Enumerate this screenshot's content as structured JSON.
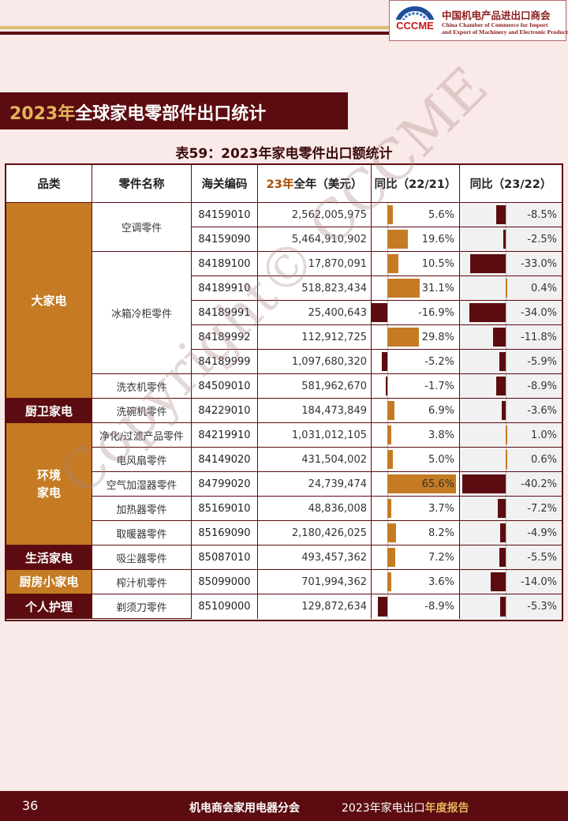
{
  "header": {
    "logo_text": "CCCME",
    "org_cn": "中国机电产品进出口商会",
    "org_en_line1": "China Chamber of Commerce for Import",
    "org_en_line2": "and Export of Machinery and Electronic Products"
  },
  "section_title": {
    "highlight": "2023年",
    "rest": "全球家电零部件出口统计"
  },
  "table_title": "表59：2023年家电零件出口额统计",
  "table": {
    "headers": {
      "category": "品类",
      "part_name": "零件名称",
      "hs_code": "海关编码",
      "value_hl": "23年",
      "value_rest": "全年（美元）",
      "yoy_22_21": "同比（22/21）",
      "yoy_23_22": "同比（23/22）"
    },
    "categories": [
      {
        "name": "大家电",
        "style": "orange",
        "start_row": 0,
        "span": 8
      },
      {
        "name": "厨卫家电",
        "style": "dark",
        "start_row": 8,
        "span": 1
      },
      {
        "name": "环境\n家电",
        "style": "orange",
        "start_row": 9,
        "span": 5
      },
      {
        "name": "生活家电",
        "style": "dark",
        "start_row": 14,
        "span": 1
      },
      {
        "name": "厨房小家电",
        "style": "orange",
        "start_row": 15,
        "span": 1
      },
      {
        "name": "个人护理",
        "style": "dark",
        "start_row": 16,
        "span": 1
      }
    ],
    "parts": [
      {
        "name": "空调零件",
        "start_row": 0,
        "span": 2
      },
      {
        "name": "冰箱冷柜零件",
        "start_row": 2,
        "span": 5
      },
      {
        "name": "洗衣机零件",
        "start_row": 7,
        "span": 1
      },
      {
        "name": "洗碗机零件",
        "start_row": 8,
        "span": 1
      },
      {
        "name": "净化/过滤产品零件",
        "start_row": 9,
        "span": 1
      },
      {
        "name": "电风扇零件",
        "start_row": 10,
        "span": 1
      },
      {
        "name": "空气加湿器零件",
        "start_row": 11,
        "span": 1
      },
      {
        "name": "加热器零件",
        "start_row": 12,
        "span": 1
      },
      {
        "name": "取暖器零件",
        "start_row": 13,
        "span": 1
      },
      {
        "name": "吸尘器零件",
        "start_row": 14,
        "span": 1
      },
      {
        "name": "榨汁机零件",
        "start_row": 15,
        "span": 1
      },
      {
        "name": "剃须刀零件",
        "start_row": 16,
        "span": 1
      }
    ],
    "rows": [
      {
        "code": "84159010",
        "value": "2,562,005,975",
        "yoy1": "5.6%",
        "yoy1_num": 5.6,
        "yoy2": "-8.5%",
        "yoy2_num": -8.5
      },
      {
        "code": "84159090",
        "value": "5,464,910,902",
        "yoy1": "19.6%",
        "yoy1_num": 19.6,
        "yoy2": "-2.5%",
        "yoy2_num": -2.5
      },
      {
        "code": "84189100",
        "value": "17,870,091",
        "yoy1": "10.5%",
        "yoy1_num": 10.5,
        "yoy2": "-33.0%",
        "yoy2_num": -33.0
      },
      {
        "code": "84189910",
        "value": "518,823,434",
        "yoy1": "31.1%",
        "yoy1_num": 31.1,
        "yoy2": "0.4%",
        "yoy2_num": 0.4
      },
      {
        "code": "84189991",
        "value": "25,400,643",
        "yoy1": "-16.9%",
        "yoy1_num": -16.9,
        "yoy2": "-34.0%",
        "yoy2_num": -34.0
      },
      {
        "code": "84189992",
        "value": "112,912,725",
        "yoy1": "29.8%",
        "yoy1_num": 29.8,
        "yoy2": "-11.8%",
        "yoy2_num": -11.8
      },
      {
        "code": "84189999",
        "value": "1,097,680,320",
        "yoy1": "-5.2%",
        "yoy1_num": -5.2,
        "yoy2": "-5.9%",
        "yoy2_num": -5.9
      },
      {
        "code": "84509010",
        "value": "581,962,670",
        "yoy1": "-1.7%",
        "yoy1_num": -1.7,
        "yoy2": "-8.9%",
        "yoy2_num": -8.9
      },
      {
        "code": "84229010",
        "value": "184,473,849",
        "yoy1": "6.9%",
        "yoy1_num": 6.9,
        "yoy2": "-3.6%",
        "yoy2_num": -3.6
      },
      {
        "code": "84219910",
        "value": "1,031,012,105",
        "yoy1": "3.8%",
        "yoy1_num": 3.8,
        "yoy2": "1.0%",
        "yoy2_num": 1.0
      },
      {
        "code": "84149020",
        "value": "431,504,002",
        "yoy1": "5.0%",
        "yoy1_num": 5.0,
        "yoy2": "0.6%",
        "yoy2_num": 0.6
      },
      {
        "code": "84799020",
        "value": "24,739,474",
        "yoy1": "65.6%",
        "yoy1_num": 65.6,
        "yoy2": "-40.2%",
        "yoy2_num": -40.2
      },
      {
        "code": "85169010",
        "value": "48,836,008",
        "yoy1": "3.7%",
        "yoy1_num": 3.7,
        "yoy2": "-7.2%",
        "yoy2_num": -7.2
      },
      {
        "code": "85169090",
        "value": "2,180,426,025",
        "yoy1": "8.2%",
        "yoy1_num": 8.2,
        "yoy2": "-4.9%",
        "yoy2_num": -4.9
      },
      {
        "code": "85087010",
        "value": "493,457,362",
        "yoy1": "7.2%",
        "yoy1_num": 7.2,
        "yoy2": "-5.5%",
        "yoy2_num": -5.5
      },
      {
        "code": "85099000",
        "value": "701,994,362",
        "yoy1": "3.6%",
        "yoy1_num": 3.6,
        "yoy2": "-14.0%",
        "yoy2_num": -14.0
      },
      {
        "code": "85109000",
        "value": "129,872,634",
        "yoy1": "-8.9%",
        "yoy1_num": -8.9,
        "yoy2": "-5.3%",
        "yoy2_num": -5.3
      }
    ]
  },
  "watermark": "Copyright© CCCME",
  "footer": {
    "page_number": "36",
    "org": "机电商会家用电器分会",
    "report_prefix": "2023年家电出口",
    "report_highlight": "年度报告"
  },
  "colors": {
    "dark": "#5c0c10",
    "orange": "#c47b23",
    "gold": "#e0b45a",
    "background": "#f9e9e9"
  }
}
